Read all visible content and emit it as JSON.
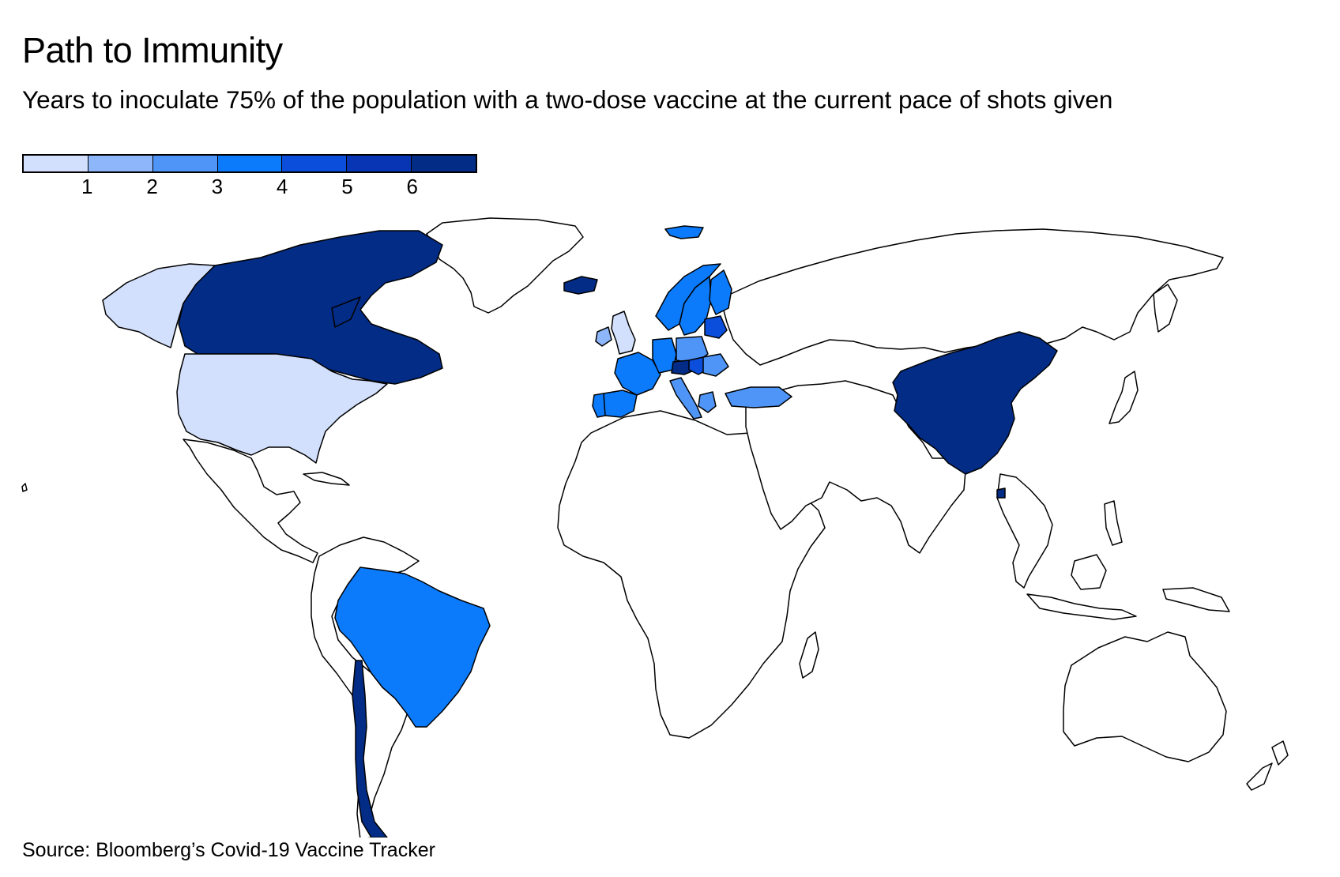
{
  "title": "Path to Immunity",
  "subtitle": "Years to inoculate 75% of the population with a two-dose vaccine at the current pace of shots given",
  "source": "Source: Bloomberg’s Covid-19 Vaccine Tracker",
  "legend": {
    "colors": [
      "#d2e0fd",
      "#8eb6fa",
      "#4f95f8",
      "#0b7bfb",
      "#0a4edb",
      "#0735b4",
      "#022c85"
    ],
    "ticks": [
      "1",
      "2",
      "3",
      "4",
      "5",
      "6"
    ]
  },
  "map_style": {
    "land_fill": "#ffffff",
    "border_color": "#000000"
  },
  "regions": [
    {
      "name": "Alaska",
      "bin": 0
    },
    {
      "name": "Canada",
      "bin": 6
    },
    {
      "name": "United States",
      "bin": 0
    },
    {
      "name": "Brazil",
      "bin": 3
    },
    {
      "name": "Chile",
      "bin": 6
    },
    {
      "name": "Iceland",
      "bin": 6
    },
    {
      "name": "Svalbard",
      "bin": 3
    },
    {
      "name": "United Kingdom",
      "bin": 0
    },
    {
      "name": "Ireland",
      "bin": 1
    },
    {
      "name": "Norway",
      "bin": 3
    },
    {
      "name": "Sweden",
      "bin": 3
    },
    {
      "name": "Finland",
      "bin": 3
    },
    {
      "name": "Baltic States",
      "bin": 4
    },
    {
      "name": "France",
      "bin": 3
    },
    {
      "name": "Spain",
      "bin": 3
    },
    {
      "name": "Portugal",
      "bin": 3
    },
    {
      "name": "Germany",
      "bin": 3
    },
    {
      "name": "Poland",
      "bin": 2
    },
    {
      "name": "Italy",
      "bin": 2
    },
    {
      "name": "Austria",
      "bin": 6
    },
    {
      "name": "Hungary",
      "bin": 4
    },
    {
      "name": "Romania",
      "bin": 2
    },
    {
      "name": "Greece",
      "bin": 2
    },
    {
      "name": "Turkey",
      "bin": 2
    },
    {
      "name": "China",
      "bin": 6
    },
    {
      "name": "Hainan",
      "bin": 6
    }
  ]
}
